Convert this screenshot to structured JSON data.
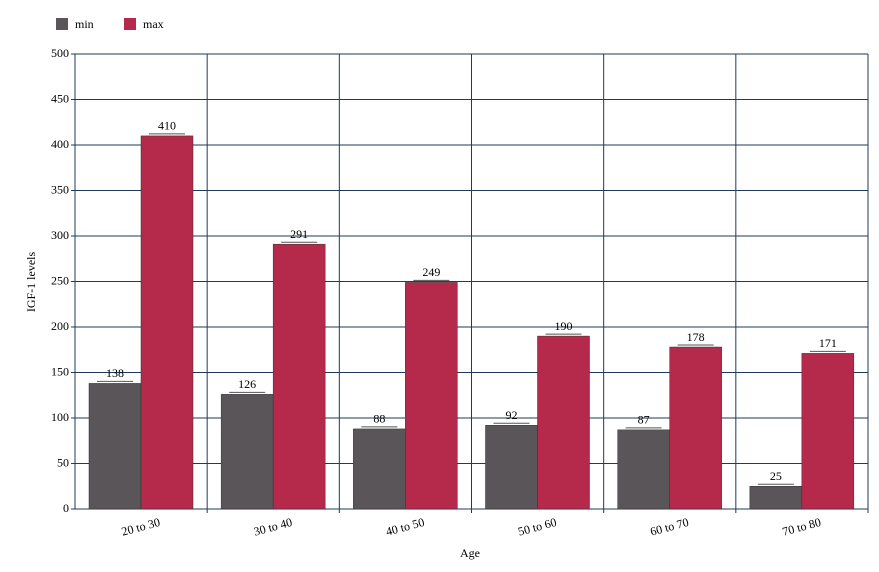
{
  "chart_data": {
    "type": "bar",
    "x_label": "Age",
    "y_label": "IGF-1 levels",
    "categories": [
      "20 to 30",
      "30 to 40",
      "40 to 50",
      "50 to 60",
      "60 to 70",
      "70 to 80"
    ],
    "series": [
      {
        "name": "min",
        "color": "#5a5558",
        "values": [
          138,
          126,
          88,
          92,
          87,
          25
        ]
      },
      {
        "name": "max",
        "color": "#b5294a",
        "values": [
          410,
          291,
          249,
          190,
          178,
          171
        ]
      }
    ],
    "ylim": [
      0,
      500
    ],
    "yticks": [
      0,
      50,
      100,
      150,
      200,
      250,
      300,
      350,
      400,
      450,
      500
    ],
    "grid": true,
    "legend": "top-left"
  }
}
